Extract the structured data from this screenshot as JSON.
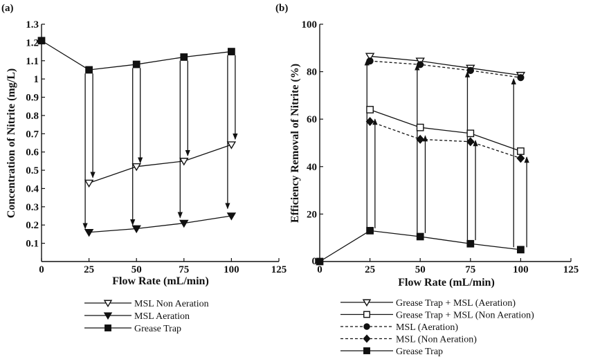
{
  "chart_data": [
    {
      "type": "line",
      "panel_label": "(a)",
      "xlabel": "Flow Rate (mL/min)",
      "ylabel": "Concentration of Nitrite (mg/L)",
      "xlim": [
        0,
        125
      ],
      "ylim": [
        0,
        1.3
      ],
      "xticks": [
        0,
        25,
        50,
        75,
        100,
        125
      ],
      "xtick_labels": [
        "0",
        "25",
        "50",
        "75",
        "100",
        "125"
      ],
      "yticks": [
        0.1,
        0.2,
        0.3,
        0.4,
        0.5,
        0.6,
        0.7,
        0.8,
        0.9,
        1,
        1.1,
        1.2,
        1.3
      ],
      "ytick_labels": [
        "0.1",
        "0.2",
        "0.3",
        "0.4",
        "0.5",
        "0.6",
        "0.7",
        "0.8",
        "0.9",
        "1",
        "1.1",
        "1.2",
        "1.3"
      ],
      "grid": false,
      "legend_position": "bottom",
      "series": [
        {
          "name": "MSL Non Aeration",
          "marker": "triangle-down-open",
          "dashed": false,
          "x": [
            25,
            50,
            75,
            100
          ],
          "y": [
            0.43,
            0.52,
            0.55,
            0.64
          ]
        },
        {
          "name": "MSL Aeration",
          "marker": "triangle-down-filled",
          "dashed": false,
          "x": [
            25,
            50,
            75,
            100
          ],
          "y": [
            0.16,
            0.18,
            0.21,
            0.25
          ]
        },
        {
          "name": "Grease Trap",
          "marker": "square-filled",
          "dashed": false,
          "x": [
            0,
            25,
            50,
            75,
            100
          ],
          "y": [
            1.21,
            1.05,
            1.08,
            1.12,
            1.15
          ]
        }
      ],
      "arrows": [
        {
          "x": 23,
          "y_from": 1.03,
          "y_to": 0.18
        },
        {
          "x": 27,
          "y_from": 1.03,
          "y_to": 0.46
        },
        {
          "x": 48,
          "y_from": 1.06,
          "y_to": 0.2
        },
        {
          "x": 52,
          "y_from": 1.06,
          "y_to": 0.54
        },
        {
          "x": 73,
          "y_from": 1.1,
          "y_to": 0.24
        },
        {
          "x": 77,
          "y_from": 1.1,
          "y_to": 0.58
        },
        {
          "x": 98,
          "y_from": 1.13,
          "y_to": 0.29
        },
        {
          "x": 102,
          "y_from": 1.13,
          "y_to": 0.67
        }
      ]
    },
    {
      "type": "line",
      "panel_label": "(b)",
      "xlabel": "Flow Rate (mL/min)",
      "ylabel": "Efficiency Removal of Nitrite (%)",
      "xlim": [
        0,
        125
      ],
      "ylim": [
        0,
        100
      ],
      "xticks": [
        0,
        25,
        50,
        75,
        100,
        125
      ],
      "xtick_labels": [
        "0",
        "25",
        "50",
        "75",
        "100",
        "125"
      ],
      "yticks": [
        20,
        40,
        60,
        80,
        100
      ],
      "ytick_labels": [
        "20",
        "40",
        "60",
        "80",
        "100"
      ],
      "grid": false,
      "legend_position": "bottom",
      "series": [
        {
          "name": "Grease Trap + MSL (Aeration)",
          "marker": "triangle-down-open",
          "dashed": false,
          "x": [
            25,
            50,
            75,
            100
          ],
          "y": [
            86.5,
            84.5,
            81.5,
            78.5
          ]
        },
        {
          "name": "Grease Trap + MSL (Non Aeration)",
          "marker": "square-open",
          "dashed": false,
          "x": [
            25,
            50,
            75,
            100
          ],
          "y": [
            64,
            56.5,
            54,
            46.5
          ]
        },
        {
          "name": "MSL (Aeration)",
          "marker": "circle-filled",
          "dashed": true,
          "x": [
            25,
            50,
            75,
            100
          ],
          "y": [
            84.5,
            83,
            80.5,
            77.5
          ]
        },
        {
          "name": "MSL (Non Aeration)",
          "marker": "diamond-filled",
          "dashed": true,
          "x": [
            25,
            50,
            75,
            100
          ],
          "y": [
            59,
            51.5,
            50.5,
            43.5
          ]
        },
        {
          "name": "Grease Trap",
          "marker": "square-filled",
          "dashed": false,
          "x": [
            0,
            25,
            50,
            75,
            100
          ],
          "y": [
            0,
            13,
            10.5,
            7.5,
            5
          ]
        }
      ],
      "arrows": [
        {
          "x": 23.5,
          "y_from": 14,
          "y_to": 85
        },
        {
          "x": 27.5,
          "y_from": 14,
          "y_to": 60
        },
        {
          "x": 48.5,
          "y_from": 12,
          "y_to": 83
        },
        {
          "x": 52.5,
          "y_from": 12,
          "y_to": 53
        },
        {
          "x": 73.5,
          "y_from": 9,
          "y_to": 80
        },
        {
          "x": 77.5,
          "y_from": 9,
          "y_to": 51
        },
        {
          "x": 96.5,
          "y_from": 6,
          "y_to": 77
        },
        {
          "x": 103,
          "y_from": 6,
          "y_to": 44
        }
      ]
    }
  ]
}
